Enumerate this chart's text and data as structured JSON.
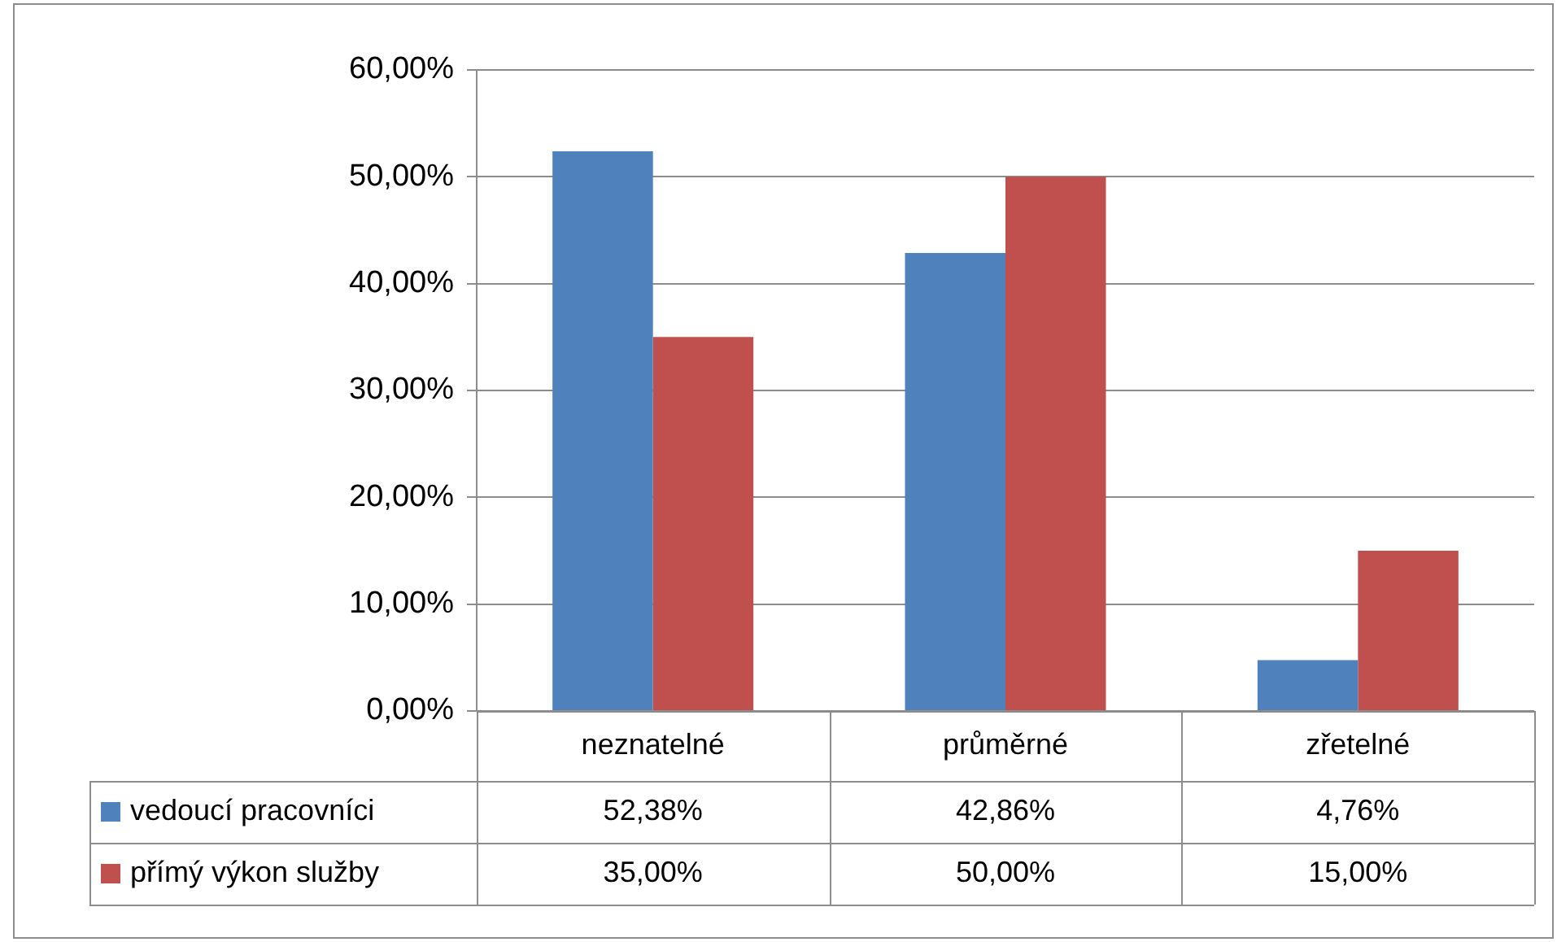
{
  "chart_data": {
    "type": "bar",
    "categories": [
      "neznatelné",
      "průměrné",
      "zřetelné"
    ],
    "series": [
      {
        "name": "vedoucí pracovníci",
        "color": "#4f81bd",
        "values": [
          52.38,
          42.86,
          4.76
        ],
        "value_labels": [
          "52,38%",
          "42,86%",
          "4,76%"
        ]
      },
      {
        "name": "přímý výkon služby",
        "color": "#c0504d",
        "values": [
          35,
          50,
          15
        ],
        "value_labels": [
          "35,00%",
          "50,00%",
          "15,00%"
        ]
      }
    ],
    "ylim": [
      0,
      60
    ],
    "yticks": [
      {
        "value": 0,
        "label": "0,00%"
      },
      {
        "value": 10,
        "label": "10,00%"
      },
      {
        "value": 20,
        "label": "20,00%"
      },
      {
        "value": 30,
        "label": "30,00%"
      },
      {
        "value": 40,
        "label": "40,00%"
      },
      {
        "value": 50,
        "label": "50,00%"
      },
      {
        "value": 60,
        "label": "60,00%"
      }
    ],
    "grid": "y",
    "legend": "bottom"
  }
}
